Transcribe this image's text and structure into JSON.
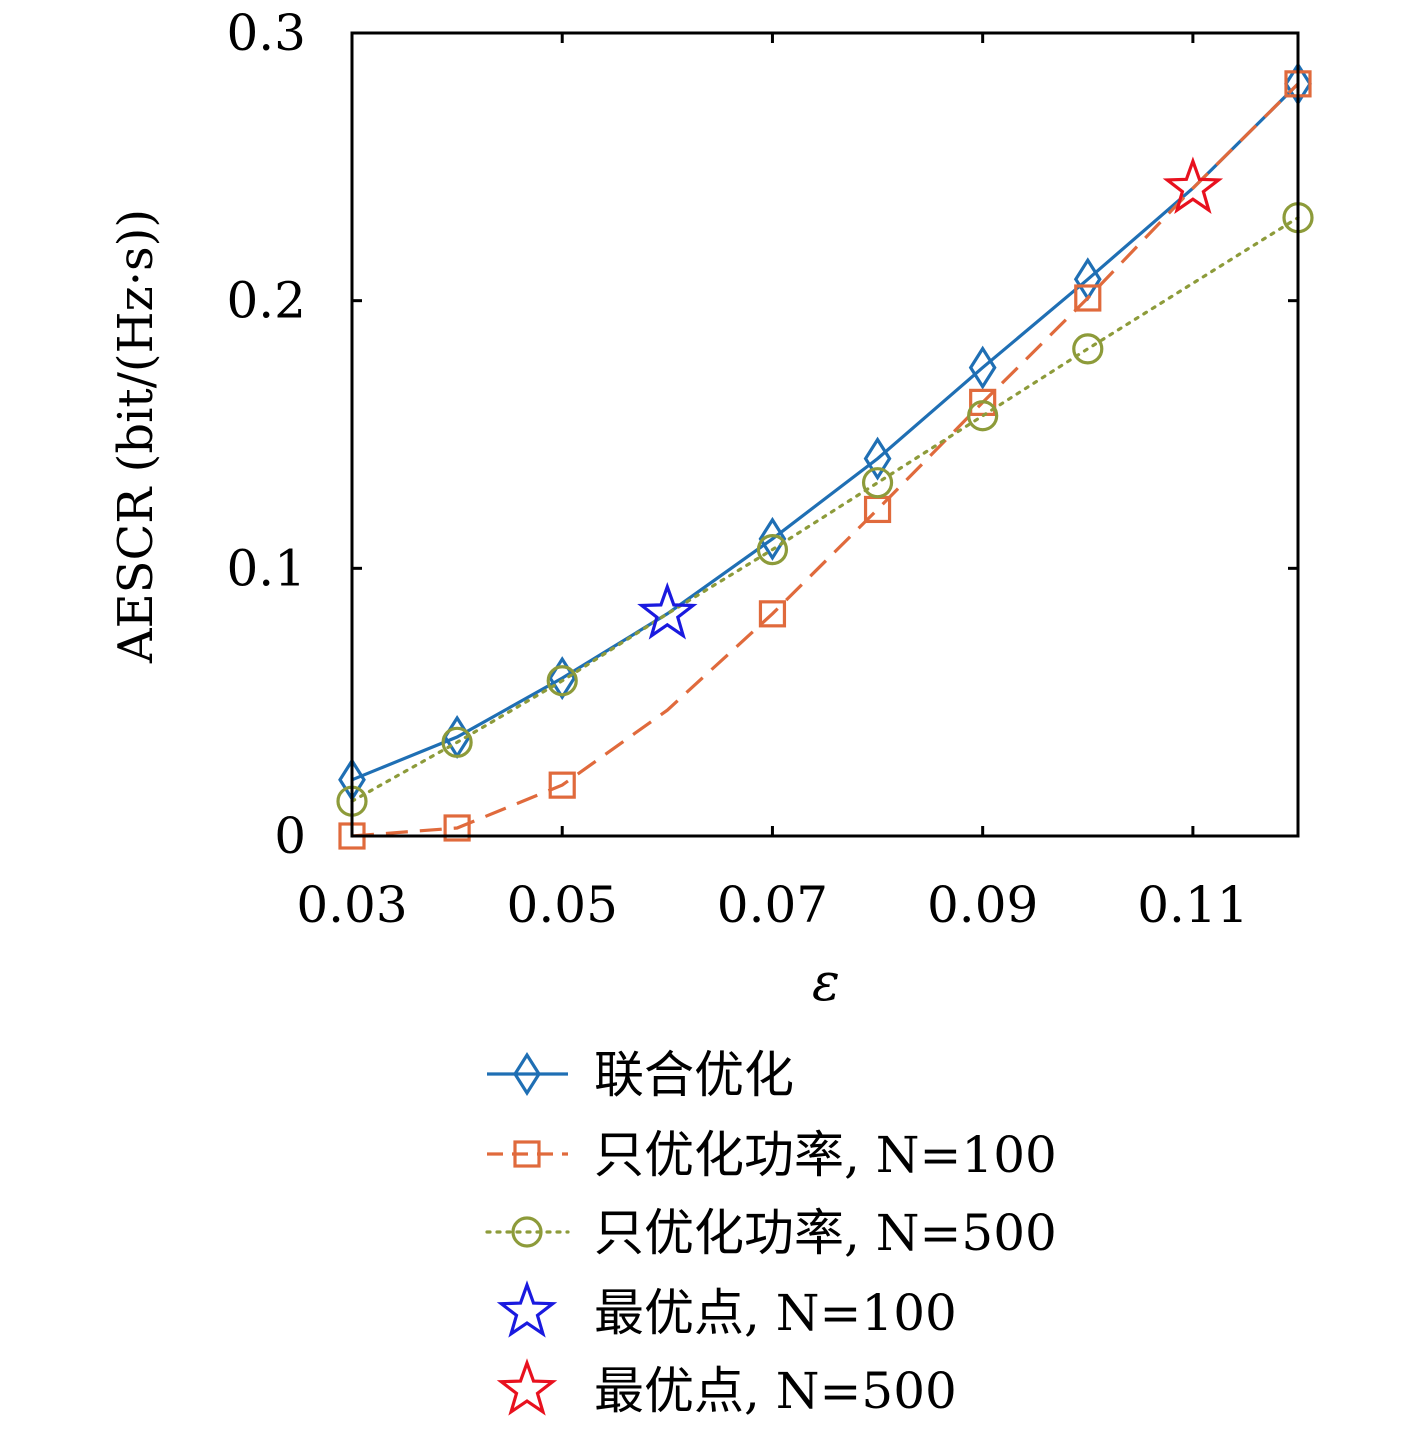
{
  "chart_data": {
    "type": "line",
    "xlabel": "ε",
    "ylabel": "AESCR (bit/(Hz·s))",
    "xlim": [
      0.03,
      0.12
    ],
    "ylim": [
      0,
      0.3
    ],
    "xticks": [
      "0.03",
      "0.05",
      "0.07",
      "0.09",
      "0.11"
    ],
    "xtick_values": [
      0.03,
      0.05,
      0.07,
      0.09,
      0.11
    ],
    "yticks": [
      "0",
      "0.1",
      "0.2",
      "0.3"
    ],
    "ytick_values": [
      0,
      0.1,
      0.2,
      0.3
    ],
    "grid": false,
    "legend_placement": "below",
    "series": [
      {
        "name": "联合优化",
        "color": "#1f6fb4",
        "line": "solid",
        "marker": "diamond",
        "x": [
          0.03,
          0.04,
          0.05,
          0.06,
          0.07,
          0.08,
          0.09,
          0.1,
          0.11,
          0.12
        ],
        "y": [
          0.021,
          0.037,
          0.059,
          0.083,
          0.111,
          0.141,
          0.175,
          0.208,
          0.242,
          0.281
        ],
        "marker_x": [
          0.03,
          0.04,
          0.05,
          0.07,
          0.08,
          0.09,
          0.1,
          0.12
        ],
        "marker_y": [
          0.021,
          0.037,
          0.059,
          0.111,
          0.141,
          0.175,
          0.208,
          0.281
        ]
      },
      {
        "name": "只优化功率, N=100",
        "color": "#e06a3c",
        "line": "dashed",
        "marker": "square",
        "x": [
          0.03,
          0.04,
          0.05,
          0.06,
          0.07,
          0.08,
          0.09,
          0.1,
          0.11,
          0.12
        ],
        "y": [
          0.0,
          0.003,
          0.019,
          0.047,
          0.083,
          0.122,
          0.162,
          0.201,
          0.242,
          0.281
        ],
        "marker_x": [
          0.03,
          0.04,
          0.05,
          0.07,
          0.08,
          0.09,
          0.1,
          0.12
        ],
        "marker_y": [
          0.0,
          0.003,
          0.019,
          0.083,
          0.122,
          0.162,
          0.201,
          0.281
        ]
      },
      {
        "name": "只优化功率, N=500",
        "color": "#8d9b3a",
        "line": "dotted",
        "marker": "circle",
        "x": [
          0.03,
          0.04,
          0.05,
          0.06,
          0.07,
          0.08,
          0.09,
          0.1,
          0.12
        ],
        "y": [
          0.013,
          0.035,
          0.058,
          0.083,
          0.107,
          0.132,
          0.157,
          0.182,
          0.231
        ],
        "marker_x": [
          0.03,
          0.04,
          0.05,
          0.07,
          0.08,
          0.09,
          0.1,
          0.12
        ],
        "marker_y": [
          0.013,
          0.035,
          0.058,
          0.107,
          0.132,
          0.157,
          0.182,
          0.231
        ]
      }
    ],
    "points": [
      {
        "name": "最优点, N=100",
        "color": "#1a1adf",
        "marker": "star",
        "x": 0.06,
        "y": 0.083
      },
      {
        "name": "最优点, N=500",
        "color": "#e8111e",
        "marker": "star",
        "x": 0.11,
        "y": 0.242
      }
    ],
    "legend": [
      {
        "label": "联合优化",
        "color": "#1f6fb4",
        "line": "solid",
        "marker": "diamond"
      },
      {
        "label": "只优化功率, N=100",
        "color": "#e06a3c",
        "line": "dashed",
        "marker": "square"
      },
      {
        "label": "只优化功率, N=500",
        "color": "#8d9b3a",
        "line": "dotted",
        "marker": "circle"
      },
      {
        "label": "最优点, N=100",
        "color": "#1a1adf",
        "line": "none",
        "marker": "star"
      },
      {
        "label": "最优点, N=500",
        "color": "#e8111e",
        "line": "none",
        "marker": "star"
      }
    ]
  }
}
